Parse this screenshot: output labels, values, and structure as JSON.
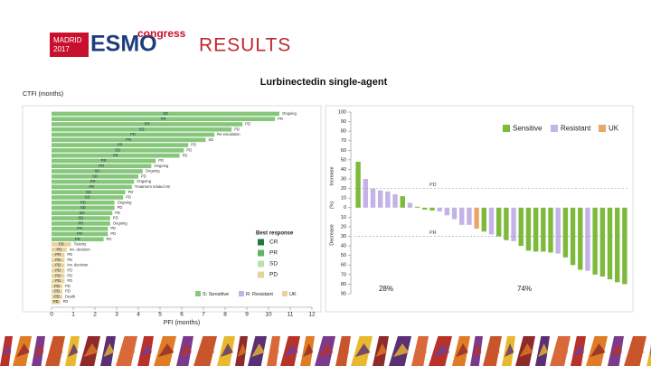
{
  "header": {
    "logo_city": "MADRID",
    "logo_year": "2017",
    "logo_brand": "ESMO",
    "logo_suffix": "congress",
    "title": "RESULTS",
    "subtitle": "Lurbinectedin single-agent"
  },
  "chart_data": [
    {
      "type": "swimmer",
      "ylabel": "CTFI (months)",
      "xlabel": "PFI (months)",
      "xlim": [
        0,
        12
      ],
      "xticks": [
        0,
        1,
        2,
        3,
        4,
        5,
        6,
        7,
        8,
        9,
        10,
        11,
        12
      ],
      "series": [
        {
          "name": "S: Sensitive",
          "color": "#86c77b",
          "values": [
            10.5,
            10.3,
            8.8,
            8.3,
            7.5,
            7.1,
            6.3,
            6.1,
            5.9,
            4.8,
            4.6,
            4.2,
            4.0,
            3.8,
            3.7,
            3.4,
            3.3,
            2.9,
            2.9,
            2.8,
            2.7,
            2.7,
            2.6,
            2.6,
            2.4,
            null,
            null,
            null,
            null,
            null,
            null,
            null,
            null,
            null,
            null,
            null,
            null
          ]
        },
        {
          "name": "R: Resistant",
          "color": "#c3b3e6",
          "values": [
            null,
            null,
            null,
            null,
            null,
            null,
            null,
            null,
            null,
            null,
            null,
            null,
            null,
            null,
            null,
            null,
            null,
            null,
            null,
            null,
            null,
            null,
            null,
            null,
            null,
            null,
            null,
            null,
            null,
            null,
            null,
            null,
            null,
            null,
            null,
            null,
            null
          ]
        },
        {
          "name": "UK",
          "color": "#e8d29c",
          "values": [
            null,
            null,
            null,
            null,
            null,
            null,
            null,
            null,
            null,
            null,
            null,
            null,
            null,
            null,
            null,
            null,
            null,
            null,
            null,
            null,
            null,
            null,
            null,
            null,
            null,
            0.9,
            0.7,
            0.6,
            0.6,
            0.6,
            0.6,
            0.6,
            0.6,
            0.5,
            0.5,
            0.5,
            0.4
          ]
        }
      ],
      "responses": [
        "SD",
        "PR",
        "PR",
        "SD",
        "PR",
        "PR",
        "PR",
        "SD",
        "PR",
        "PR",
        "PR",
        "SD",
        "SD",
        "PR",
        "PR",
        "SD",
        "SD",
        "PD",
        "SD",
        "SD",
        "SD",
        "PR",
        "PR",
        "PR",
        "PR",
        "PD",
        "PD",
        "PR",
        "PD",
        "PD",
        "PD",
        "PD",
        "PD",
        "PD",
        "PD",
        "PD",
        "PD"
      ],
      "outcomes": [
        "Ongoing",
        "PR",
        "PD",
        "PD",
        "Re-escalation",
        "SD",
        "PD",
        "PD",
        "PD",
        "PD",
        "Ongoing",
        "Ongoing",
        "PD",
        "Ongoing",
        "Treatment related AE",
        "PD",
        "PD",
        "Ongoing",
        "PD",
        "PD",
        "PD",
        "Ongoing",
        "PD",
        "PD",
        "PD",
        "Toxicity",
        "Inv. decision",
        "PD",
        "PD",
        "Inv. decision",
        "PD",
        "PD",
        "PD",
        "PD",
        "PD",
        "Death",
        "PD"
      ],
      "best_response": {
        "title": "Best response",
        "items": [
          {
            "name": "CR",
            "color": "#1f7a3a"
          },
          {
            "name": "PR",
            "color": "#5bb860"
          },
          {
            "name": "SD",
            "color": "#b9e0b1"
          },
          {
            "name": "PD",
            "color": "#e8d29c"
          }
        ]
      }
    },
    {
      "type": "waterfall",
      "ylabel_top": "Increase",
      "ylabel_mid": "(%)",
      "ylabel_bottom": "Decrease",
      "ylim": [
        -90,
        100
      ],
      "yticks": [
        100,
        90,
        80,
        70,
        60,
        50,
        40,
        30,
        20,
        10,
        0,
        {
          "value": -10,
          "label": "10"
        },
        {
          "value": -20,
          "label": "20"
        },
        {
          "value": -30,
          "label": "30"
        },
        {
          "value": -40,
          "label": "40"
        },
        {
          "value": -50,
          "label": "50"
        },
        {
          "value": -60,
          "label": "60"
        },
        {
          "value": -70,
          "label": "70"
        },
        {
          "value": -80,
          "label": "80"
        },
        {
          "value": -90,
          "label": "90"
        }
      ],
      "series": [
        {
          "name": "Sensitive",
          "color": "#7dba3c",
          "values": [
            48,
            null,
            null,
            null,
            null,
            null,
            12,
            null,
            1,
            -2,
            -3,
            null,
            null,
            null,
            null,
            null,
            null,
            -25,
            null,
            -30,
            -34,
            null,
            -40,
            -45,
            -46,
            -46,
            -47,
            null,
            -52,
            -60,
            -65,
            null,
            -70,
            -72,
            -75,
            -78,
            -80
          ]
        },
        {
          "name": "Resistant",
          "color": "#c4b3e6",
          "values": [
            null,
            30,
            20,
            18,
            17,
            14,
            null,
            5,
            null,
            null,
            null,
            -4,
            -8,
            -12,
            -18,
            -18,
            null,
            null,
            -28,
            null,
            null,
            -35,
            null,
            null,
            null,
            null,
            null,
            -48,
            null,
            null,
            null,
            -66,
            null,
            null,
            null,
            null,
            null
          ]
        },
        {
          "name": "UK",
          "color": "#e8a66a",
          "values": [
            null,
            null,
            null,
            null,
            null,
            null,
            null,
            null,
            null,
            null,
            null,
            null,
            null,
            null,
            null,
            null,
            -22,
            null,
            null,
            null,
            null,
            null,
            null,
            null,
            null,
            null,
            null,
            null,
            null,
            null,
            null,
            null,
            null,
            null,
            null,
            null,
            null
          ]
        }
      ],
      "reference_lines": [
        {
          "value": 20,
          "label": "PD"
        },
        {
          "value": -30,
          "label": "PR"
        }
      ],
      "annotations": [
        "28%",
        "74%"
      ]
    }
  ]
}
